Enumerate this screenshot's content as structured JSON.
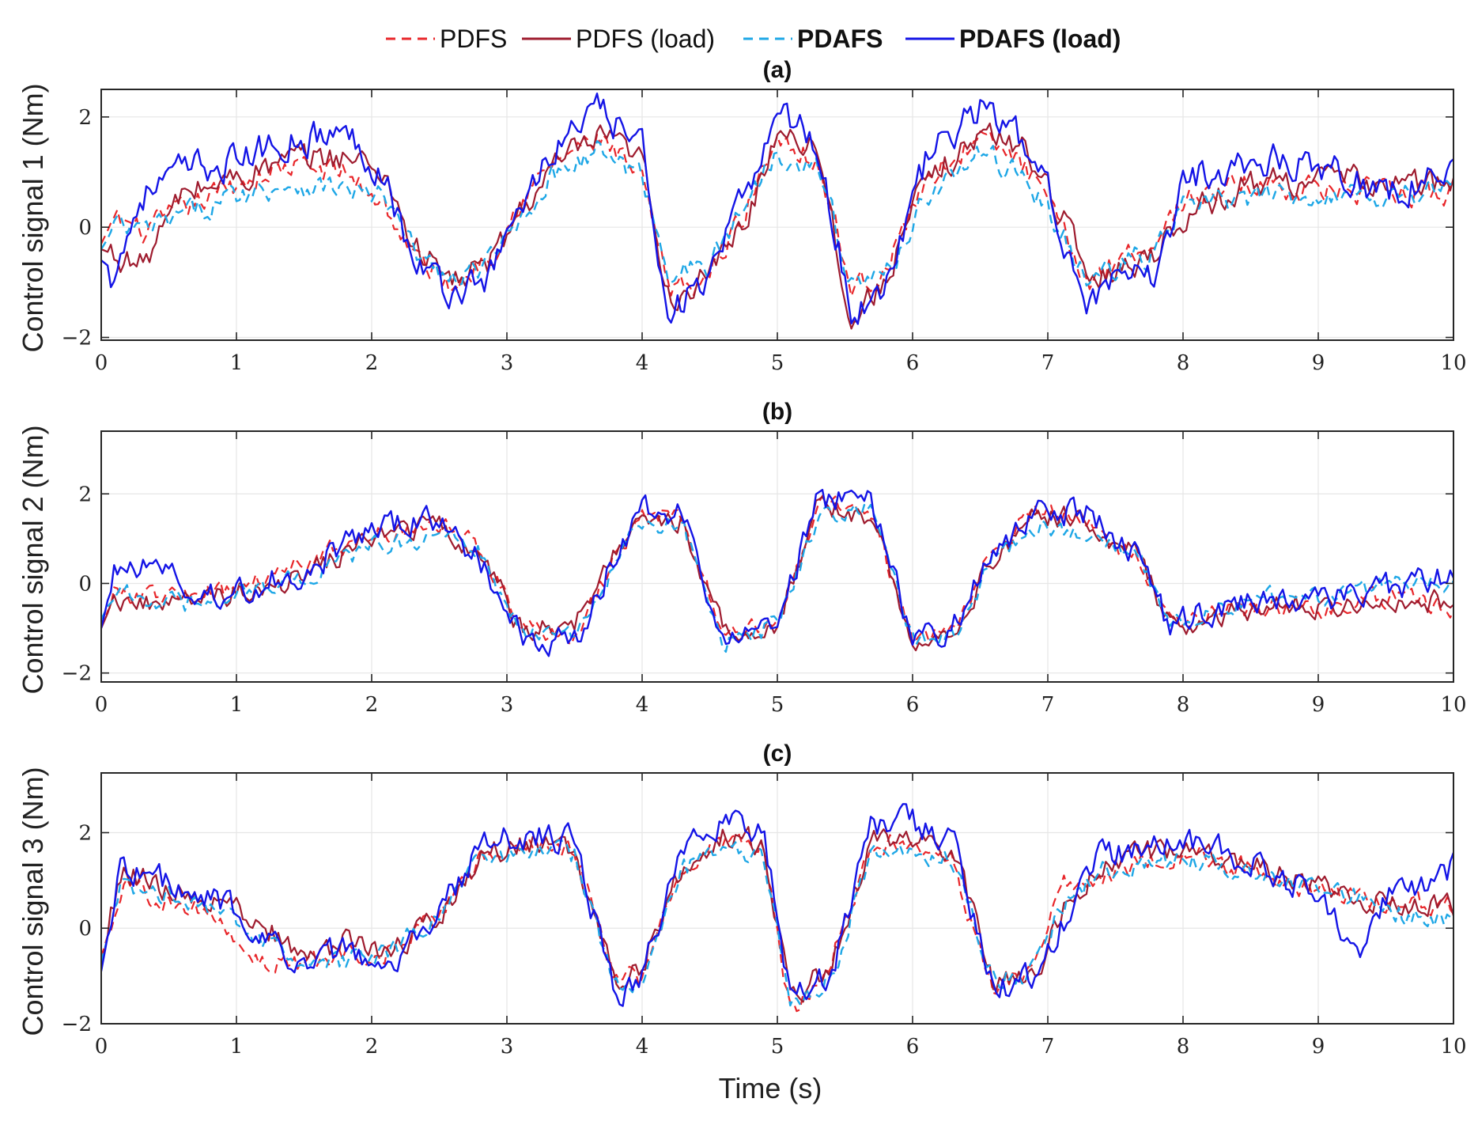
{
  "chart_data": {
    "type": "line",
    "legend": [
      {
        "name": "PDFS",
        "color": "#e8262a",
        "dash": "dashed",
        "bold": false
      },
      {
        "name": "PDFS (load)",
        "color": "#9e1b2e",
        "dash": "solid",
        "bold": false
      },
      {
        "name": "PDAFS",
        "color": "#1ea7e6",
        "dash": "dashed",
        "bold": true
      },
      {
        "name": "PDAFS (load)",
        "color": "#1414e6",
        "dash": "solid",
        "bold": true
      }
    ],
    "xlabel": "Time (s)",
    "xlim": [
      0,
      10
    ],
    "xticks": [
      0,
      1,
      2,
      3,
      4,
      5,
      6,
      7,
      8,
      9,
      10
    ],
    "panels": [
      {
        "title": "(a)",
        "ylabel": "Control signal 1 (Nm)",
        "ylim": [
          -2.05,
          2.5
        ],
        "yticks": [
          -2,
          0,
          2
        ],
        "ytick_labels": [
          "−2",
          "0",
          "2"
        ],
        "anchors": {
          "x": [
            0,
            0.1,
            0.3,
            0.6,
            1.0,
            1.4,
            1.8,
            2.1,
            2.3,
            2.6,
            2.9,
            3.1,
            3.4,
            3.7,
            4.0,
            4.2,
            4.5,
            4.8,
            5.0,
            5.3,
            5.55,
            5.8,
            6.1,
            6.5,
            6.8,
            7.0,
            7.3,
            7.6,
            7.8,
            8.0,
            8.5,
            9.0,
            9.5,
            10.0
          ],
          "series": [
            {
              "name": "PDFS",
              "values": [
                -0.3,
                0.2,
                -0.1,
                0.3,
                0.8,
                1.1,
                1.0,
                0.4,
                -0.5,
                -1.1,
                -0.4,
                0.5,
                1.3,
                1.6,
                0.8,
                -1.2,
                -0.9,
                0.5,
                1.7,
                1.2,
                -1.1,
                -0.8,
                0.9,
                1.6,
                1.2,
                0.4,
                -1.0,
                -0.4,
                -0.3,
                0.5,
                0.8,
                0.7,
                0.6,
                0.6
              ]
            },
            {
              "name": "PDFS (load)",
              "values": [
                -0.4,
                -0.5,
                -0.7,
                0.6,
                0.9,
                1.2,
                1.3,
                1.0,
                -0.3,
                -1.0,
                -0.6,
                0.3,
                1.2,
                1.6,
                1.2,
                -1.3,
                -0.9,
                0.3,
                1.8,
                1.5,
                -1.8,
                -0.9,
                0.8,
                1.7,
                1.5,
                0.8,
                -0.9,
                -0.7,
                -0.4,
                0.2,
                0.8,
                0.9,
                0.8,
                0.75
              ]
            },
            {
              "name": "PDAFS",
              "values": [
                -0.4,
                0.0,
                -0.1,
                0.2,
                0.6,
                0.8,
                0.7,
                0.5,
                -0.4,
                -1.0,
                -0.6,
                0.2,
                1.1,
                1.4,
                0.9,
                -0.8,
                -0.7,
                0.6,
                1.4,
                1.1,
                -1.0,
                -0.9,
                0.6,
                1.3,
                1.0,
                0.3,
                -1.0,
                -0.6,
                -0.5,
                0.4,
                0.5,
                0.6,
                0.6,
                0.7
              ]
            },
            {
              "name": "PDAFS (load)",
              "values": [
                -0.6,
                -0.8,
                0.6,
                1.0,
                1.2,
                1.6,
                1.7,
                1.0,
                -0.6,
                -1.2,
                -0.8,
                0.4,
                1.6,
                2.1,
                1.4,
                -1.5,
                -1.0,
                0.8,
                2.2,
                1.5,
                -1.6,
                -1.0,
                1.2,
                2.2,
                1.6,
                0.6,
                -1.3,
                -1.0,
                -0.9,
                0.9,
                1.2,
                1.2,
                0.6,
                1.0
              ]
            }
          ]
        }
      },
      {
        "title": "(b)",
        "ylabel": "Control signal 2 (Nm)",
        "ylim": [
          -2.2,
          3.4
        ],
        "yticks": [
          -2,
          0,
          2
        ],
        "ytick_labels": [
          "−2",
          "0",
          "2"
        ],
        "anchors": {
          "x": [
            0,
            0.1,
            0.4,
            0.7,
            1.0,
            1.5,
            2.0,
            2.5,
            2.8,
            3.1,
            3.5,
            3.8,
            4.0,
            4.3,
            4.6,
            5.0,
            5.3,
            5.7,
            6.0,
            6.3,
            6.6,
            6.9,
            7.3,
            7.7,
            7.9,
            8.2,
            8.6,
            9.0,
            9.4,
            9.7,
            10.0
          ],
          "series": [
            {
              "name": "PDFS",
              "values": [
                -1.0,
                -0.2,
                -0.3,
                -0.3,
                -0.1,
                0.5,
                1.1,
                1.3,
                0.8,
                -0.8,
                -1.3,
                0.6,
                1.5,
                1.5,
                -1.2,
                -0.8,
                1.8,
                1.5,
                -1.2,
                -1.0,
                0.8,
                1.6,
                1.3,
                0.4,
                -1.0,
                -0.7,
                -0.5,
                -0.6,
                -0.3,
                -0.4,
                -0.5
              ]
            },
            {
              "name": "PDFS (load)",
              "values": [
                -1.0,
                -0.3,
                -0.5,
                -0.4,
                -0.2,
                0.2,
                1.0,
                1.3,
                0.7,
                -1.0,
                -1.0,
                0.8,
                1.5,
                1.4,
                -1.1,
                -0.9,
                1.7,
                1.5,
                -1.4,
                -1.0,
                0.5,
                1.5,
                1.4,
                0.5,
                -0.9,
                -0.8,
                -0.5,
                -0.5,
                -0.3,
                -0.4,
                -0.4
              ]
            },
            {
              "name": "PDAFS",
              "values": [
                -0.8,
                -0.2,
                -0.4,
                -0.5,
                -0.2,
                0.1,
                0.8,
                1.1,
                0.7,
                -1.1,
                -1.2,
                0.4,
                1.3,
                1.3,
                -1.3,
                -0.9,
                1.5,
                1.8,
                -1.3,
                -1.2,
                0.6,
                1.3,
                1.2,
                0.4,
                -1.0,
                -0.6,
                -0.3,
                -0.4,
                -0.1,
                0.1,
                0.1
              ]
            },
            {
              "name": "PDAFS (load)",
              "values": [
                -1.0,
                0.3,
                0.5,
                -0.3,
                -0.2,
                0.3,
                1.2,
                1.4,
                0.5,
                -1.2,
                -1.3,
                0.6,
                1.6,
                1.6,
                -1.4,
                -0.9,
                1.9,
                1.8,
                -1.3,
                -1.0,
                0.7,
                1.6,
                1.6,
                0.5,
                -1.0,
                -0.6,
                -0.3,
                -0.4,
                -0.2,
                0.0,
                0.15
              ]
            }
          ]
        }
      },
      {
        "title": "(c)",
        "ylabel": "Control signal 3 (Nm)",
        "ylim": [
          -2.0,
          3.25
        ],
        "yticks": [
          -2,
          0,
          2
        ],
        "ytick_labels": [
          "−2",
          "0",
          "2"
        ],
        "anchors": {
          "x": [
            0,
            0.15,
            0.4,
            0.8,
            1.1,
            1.5,
            1.8,
            2.1,
            2.5,
            2.8,
            3.2,
            3.5,
            3.8,
            4.0,
            4.3,
            4.6,
            4.9,
            5.1,
            5.4,
            5.7,
            6.0,
            6.3,
            6.6,
            6.9,
            7.1,
            7.4,
            7.8,
            8.2,
            8.6,
            9.0,
            9.3,
            9.5,
            10.0
          ],
          "series": [
            {
              "name": "PDFS",
              "values": [
                -0.6,
                0.8,
                0.7,
                0.3,
                -0.6,
                -0.8,
                -0.5,
                -0.5,
                0.3,
                1.4,
                1.8,
                1.6,
                -1.0,
                -1.1,
                1.2,
                1.8,
                1.6,
                -1.8,
                -0.6,
                1.8,
                1.7,
                1.4,
                -1.4,
                -0.8,
                0.9,
                1.0,
                1.5,
                1.5,
                1.1,
                0.8,
                0.6,
                0.5,
                0.5
              ]
            },
            {
              "name": "PDFS (load)",
              "values": [
                -0.8,
                1.2,
                0.9,
                0.6,
                0.3,
                -0.6,
                -0.3,
                -0.6,
                0.3,
                1.5,
                1.8,
                1.5,
                -1.2,
                -0.8,
                1.3,
                2.0,
                1.7,
                -1.4,
                -0.8,
                1.8,
                1.9,
                1.7,
                -1.2,
                -1.0,
                0.3,
                1.4,
                1.6,
                1.6,
                1.2,
                0.9,
                0.7,
                0.5,
                0.45
              ]
            },
            {
              "name": "PDAFS",
              "values": [
                -0.7,
                0.9,
                0.8,
                0.5,
                -0.1,
                -0.9,
                -0.7,
                -0.6,
                0.4,
                1.3,
                1.6,
                1.5,
                -1.2,
                -1.0,
                1.2,
                1.7,
                1.5,
                -1.5,
                -1.0,
                1.6,
                1.6,
                1.5,
                -1.1,
                -0.9,
                0.5,
                1.2,
                1.4,
                1.4,
                1.1,
                0.9,
                0.7,
                0.4,
                0.1
              ]
            },
            {
              "name": "PDAFS (load)",
              "values": [
                -0.9,
                1.4,
                1.0,
                0.7,
                0.1,
                -0.8,
                -0.4,
                -0.9,
                0.4,
                1.7,
                2.0,
                1.8,
                -1.4,
                -1.0,
                1.6,
                2.3,
                1.9,
                -1.6,
                -1.0,
                2.2,
                2.2,
                1.8,
                -1.3,
                -1.0,
                0.1,
                1.5,
                1.7,
                1.7,
                1.3,
                0.6,
                -0.6,
                0.6,
                1.3
              ]
            }
          ]
        }
      }
    ]
  }
}
